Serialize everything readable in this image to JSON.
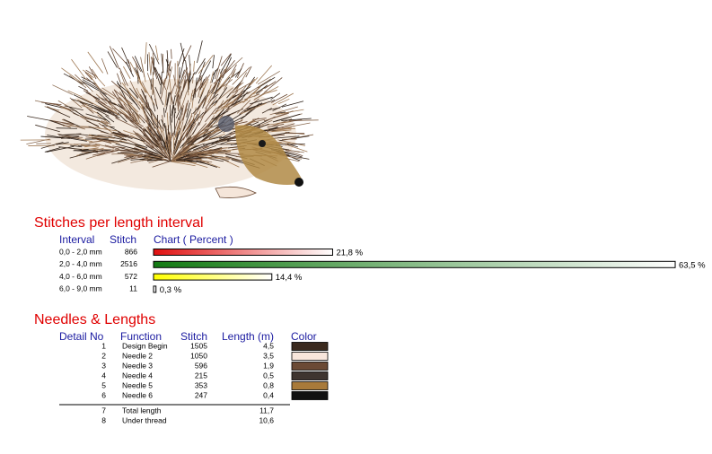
{
  "stitches_section": {
    "title": "Stitches per length interval",
    "headers": [
      "Interval",
      "Stitch",
      "Chart ( Percent )"
    ],
    "rows": [
      {
        "interval": "0,0 - 2,0 mm",
        "stitch": 866,
        "percent": 21.8,
        "percent_label": "21,8 %",
        "color": "#e01010"
      },
      {
        "interval": "2,0 - 4,0 mm",
        "stitch": 2516,
        "percent": 63.5,
        "percent_label": "63,5 %",
        "color": "#127a12"
      },
      {
        "interval": "4,0 - 6,0 mm",
        "stitch": 572,
        "percent": 14.4,
        "percent_label": "14,4 %",
        "color": "#ffff00"
      },
      {
        "interval": "6,0 - 9,0 mm",
        "stitch": 11,
        "percent": 0.3,
        "percent_label": "0,3 %",
        "color": "#ffffff"
      }
    ]
  },
  "needles_section": {
    "title": "Needles & Lengths",
    "headers": [
      "Detail No",
      "Function",
      "Stitch",
      "Length (m)",
      "Color"
    ],
    "rows": [
      {
        "no": 1,
        "function": "Design Begin",
        "stitch": 1505,
        "length": "4,5",
        "color": "#3b2a1e"
      },
      {
        "no": 2,
        "function": "Needle 2",
        "stitch": 1050,
        "length": "3,5",
        "color": "#f8e6dc"
      },
      {
        "no": 3,
        "function": "Needle 3",
        "stitch": 596,
        "length": "1,9",
        "color": "#6b4a35"
      },
      {
        "no": 4,
        "function": "Needle 4",
        "stitch": 215,
        "length": "0,5",
        "color": "#3f3530"
      },
      {
        "no": 5,
        "function": "Needle 5",
        "stitch": 353,
        "length": "0,8",
        "color": "#a87a3a"
      },
      {
        "no": 6,
        "function": "Needle 6",
        "stitch": 247,
        "length": "0,4",
        "color": "#111111"
      }
    ],
    "totals": [
      {
        "no": 7,
        "function": "Total length",
        "length": "11,7"
      },
      {
        "no": 8,
        "function": "Under thread",
        "length": "10,6"
      }
    ]
  }
}
